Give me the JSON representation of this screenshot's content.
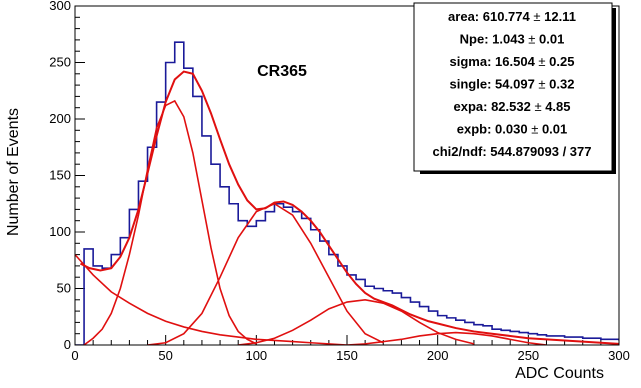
{
  "chart_data": {
    "type": "line",
    "title": "",
    "xlabel": "ADC Counts",
    "ylabel": "Number of Events",
    "xlim": [
      0,
      300
    ],
    "ylim": [
      0,
      300
    ],
    "x_ticks": [
      0,
      50,
      100,
      150,
      200,
      250,
      300
    ],
    "y_ticks": [
      0,
      50,
      100,
      150,
      200,
      250,
      300
    ],
    "x_tick_labels": [
      "0",
      "50",
      "100",
      "150",
      "200",
      "250",
      "300"
    ],
    "y_tick_labels": [
      "0",
      "50",
      "100",
      "150",
      "200",
      "250",
      "300"
    ],
    "annotation": "CR365",
    "colors": {
      "histogram": "#1a1a99",
      "fit": "#e01010",
      "axis": "#000000"
    },
    "stats": [
      {
        "name": "area:",
        "value": "610.774",
        "error": "12.11"
      },
      {
        "name": "Npe:",
        "value": "1.043",
        "error": "0.01"
      },
      {
        "name": "sigma:",
        "value": "16.504",
        "error": "0.25"
      },
      {
        "name": "single:",
        "value": "54.097",
        "error": "0.32"
      },
      {
        "name": "expa:",
        "value": "82.532",
        "error": "4.85"
      },
      {
        "name": "expb:",
        "value": "0.030",
        "error": "0.01"
      },
      {
        "name": "chi2/ndf:",
        "value": "544.879093 / 377",
        "error": ""
      }
    ],
    "histogram": {
      "name": "",
      "x": [
        0,
        5,
        10,
        15,
        20,
        25,
        30,
        35,
        40,
        45,
        50,
        55,
        60,
        65,
        70,
        75,
        80,
        85,
        90,
        95,
        100,
        105,
        110,
        115,
        120,
        125,
        130,
        135,
        140,
        145,
        150,
        155,
        160,
        165,
        170,
        175,
        180,
        185,
        190,
        195,
        200,
        205,
        210,
        215,
        220,
        225,
        230,
        235,
        240,
        245,
        250,
        255,
        260,
        265,
        270,
        275,
        280,
        285,
        290,
        295,
        300
      ],
      "y": [
        0,
        85,
        70,
        68,
        80,
        95,
        120,
        145,
        175,
        215,
        250,
        268,
        245,
        220,
        185,
        160,
        140,
        125,
        110,
        105,
        110,
        118,
        125,
        122,
        118,
        112,
        102,
        92,
        80,
        70,
        62,
        58,
        52,
        50,
        48,
        46,
        42,
        38,
        34,
        30,
        26,
        24,
        22,
        20,
        18,
        17,
        14,
        13,
        12,
        11,
        10,
        9,
        8,
        8,
        7,
        7,
        6,
        6,
        5,
        5,
        4
      ]
    },
    "fit_components": [
      {
        "name": "",
        "x": [
          3,
          8,
          14,
          20,
          25,
          30,
          35,
          40,
          45,
          50,
          55,
          60,
          65,
          70,
          75,
          80,
          85,
          90,
          95,
          100,
          105,
          110,
          115,
          120,
          125,
          130,
          135,
          140,
          145,
          150,
          155,
          160,
          165,
          170,
          175,
          180,
          185,
          190,
          195,
          200,
          210,
          220,
          230,
          240,
          250,
          260,
          270,
          280,
          290,
          300
        ],
        "y": [
          72,
          68,
          66,
          68,
          78,
          95,
          120,
          152,
          185,
          215,
          235,
          242,
          240,
          225,
          205,
          182,
          160,
          142,
          128,
          120,
          121,
          126,
          127,
          124,
          118,
          110,
          100,
          88,
          76,
          64,
          54,
          46,
          41,
          38,
          35,
          31,
          27,
          24,
          21,
          19,
          15,
          12,
          10,
          8,
          6,
          5,
          4,
          3,
          2,
          1
        ]
      },
      {
        "name": "",
        "x": [
          5,
          10,
          15,
          20,
          25,
          30,
          35,
          40,
          45,
          50,
          55,
          60,
          65,
          70,
          75,
          80,
          85,
          90,
          95,
          100
        ],
        "y": [
          0,
          6,
          14,
          28,
          50,
          80,
          115,
          155,
          192,
          212,
          216,
          202,
          170,
          128,
          86,
          50,
          26,
          12,
          5,
          1
        ]
      },
      {
        "name": "",
        "x": [
          40,
          50,
          60,
          70,
          80,
          90,
          100,
          110,
          120,
          130,
          140,
          150,
          160,
          170
        ],
        "y": [
          0,
          2,
          10,
          28,
          60,
          95,
          118,
          125,
          115,
          90,
          60,
          30,
          10,
          2
        ]
      },
      {
        "name": "",
        "x": [
          90,
          100,
          110,
          120,
          130,
          140,
          150,
          160,
          170,
          180,
          190,
          200,
          210,
          220
        ],
        "y": [
          0,
          2,
          6,
          13,
          22,
          32,
          38,
          40,
          37,
          30,
          20,
          11,
          5,
          1
        ]
      },
      {
        "name": "",
        "x": [
          150,
          160,
          170,
          180,
          190,
          200,
          210,
          220,
          230,
          240,
          250,
          260
        ],
        "y": [
          0,
          1,
          3,
          5,
          8,
          10,
          11,
          10,
          8,
          5,
          2,
          0
        ]
      },
      {
        "name": "",
        "x": [
          0,
          10,
          20,
          30,
          40,
          50,
          60,
          70,
          80,
          90,
          100,
          110,
          120,
          130,
          140,
          150
        ],
        "y": [
          80,
          62,
          47,
          37,
          28,
          21,
          16,
          12,
          9,
          7,
          5,
          4,
          3,
          2,
          1,
          0
        ]
      }
    ]
  }
}
